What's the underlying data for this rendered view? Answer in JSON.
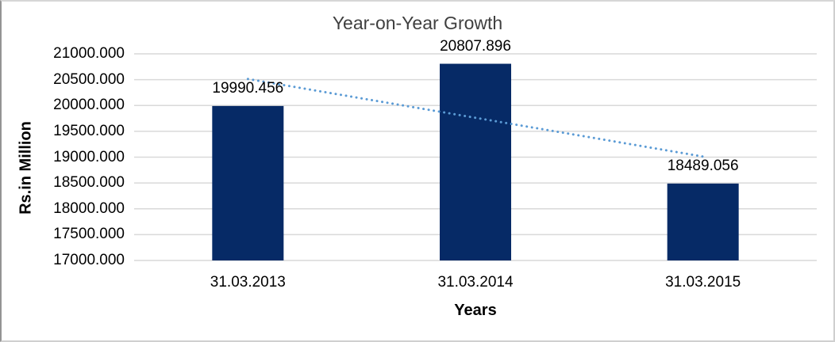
{
  "chart_data": {
    "type": "bar",
    "title": "Year-on-Year Growth",
    "xlabel": "Years",
    "ylabel": "Rs.in Million",
    "categories": [
      "31.03.2013",
      "31.03.2014",
      "31.03.2015"
    ],
    "values": [
      19990.456,
      20807.896,
      18489.056
    ],
    "data_labels": [
      "19990.456",
      "20807.896",
      "18489.056"
    ],
    "ylim": [
      17000,
      21000
    ],
    "ytick_step": 500,
    "ytick_labels": [
      "21000.000",
      "20500.000",
      "20000.000",
      "19500.000",
      "19000.000",
      "18500.000",
      "18000.000",
      "17500.000",
      "17000.000"
    ],
    "grid": true,
    "legend_position": "none",
    "trendline": {
      "type": "linear",
      "style": "dotted"
    },
    "colors": {
      "bar": "#062A66",
      "trendline": "#5B9BD5",
      "gridline": "#D9D9D9",
      "label_text": "#000000",
      "title_text": "#3F3F3F",
      "background": "#FFFFFF",
      "frame_border": "#C9C9C9"
    }
  }
}
